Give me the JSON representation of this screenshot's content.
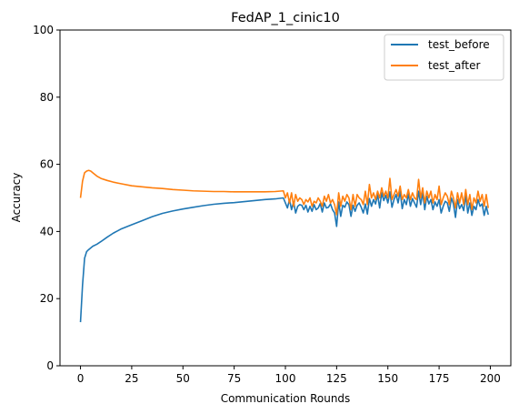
{
  "chart_data": {
    "type": "line",
    "title": "FedAP_1_cinic10",
    "xlabel": "Communication Rounds",
    "ylabel": "Accuracy",
    "xlim": [
      -10,
      210
    ],
    "ylim": [
      0,
      100
    ],
    "xticks": [
      0,
      25,
      50,
      75,
      100,
      125,
      150,
      175,
      200
    ],
    "yticks": [
      0,
      20,
      40,
      60,
      80,
      100
    ],
    "legend_position": "top-right",
    "grid": false,
    "series": [
      {
        "name": "test_before",
        "color": "#1f77b4",
        "points": [
          [
            0,
            13
          ],
          [
            1,
            24
          ],
          [
            2,
            32
          ],
          [
            3,
            34
          ],
          [
            4,
            34.6
          ],
          [
            6,
            35.6
          ],
          [
            8,
            36.2
          ],
          [
            10,
            37
          ],
          [
            13,
            38.3
          ],
          [
            16,
            39.5
          ],
          [
            20,
            40.8
          ],
          [
            25,
            42
          ],
          [
            30,
            43.2
          ],
          [
            35,
            44.4
          ],
          [
            40,
            45.4
          ],
          [
            45,
            46.1
          ],
          [
            50,
            46.7
          ],
          [
            55,
            47.2
          ],
          [
            60,
            47.7
          ],
          [
            65,
            48.1
          ],
          [
            70,
            48.4
          ],
          [
            75,
            48.6
          ],
          [
            80,
            48.9
          ],
          [
            85,
            49.2
          ],
          [
            90,
            49.5
          ],
          [
            95,
            49.7
          ],
          [
            99,
            50
          ],
          [
            100,
            48.5
          ],
          [
            101,
            47
          ],
          [
            102,
            49.5
          ],
          [
            103,
            46.5
          ],
          [
            104,
            48.8
          ],
          [
            105,
            45.5
          ],
          [
            106,
            47.5
          ],
          [
            107,
            48
          ],
          [
            108,
            47.8
          ],
          [
            109,
            46.5
          ],
          [
            110,
            47.8
          ],
          [
            111,
            45.8
          ],
          [
            112,
            47.5
          ],
          [
            113,
            46
          ],
          [
            114,
            48
          ],
          [
            115,
            46.5
          ],
          [
            116,
            47
          ],
          [
            117,
            48.3
          ],
          [
            118,
            45.8
          ],
          [
            119,
            48.5
          ],
          [
            120,
            47
          ],
          [
            121,
            47.2
          ],
          [
            122,
            48.2
          ],
          [
            123,
            46.5
          ],
          [
            124,
            45.5
          ],
          [
            125,
            41.5
          ],
          [
            126,
            48.8
          ],
          [
            127,
            44.5
          ],
          [
            128,
            47.8
          ],
          [
            129,
            47.2
          ],
          [
            130,
            48.8
          ],
          [
            131,
            48
          ],
          [
            132,
            44.5
          ],
          [
            133,
            47.8
          ],
          [
            134,
            46
          ],
          [
            135,
            47.8
          ],
          [
            136,
            48.5
          ],
          [
            137,
            47.2
          ],
          [
            138,
            45.5
          ],
          [
            139,
            48.2
          ],
          [
            140,
            45.2
          ],
          [
            141,
            49.8
          ],
          [
            142,
            47.5
          ],
          [
            143,
            49.5
          ],
          [
            144,
            48.2
          ],
          [
            145,
            51
          ],
          [
            146,
            47
          ],
          [
            147,
            51.5
          ],
          [
            148,
            49.2
          ],
          [
            149,
            50.8
          ],
          [
            150,
            48.5
          ],
          [
            151,
            51.8
          ],
          [
            152,
            47.2
          ],
          [
            153,
            49.5
          ],
          [
            154,
            51
          ],
          [
            155,
            48.5
          ],
          [
            156,
            52
          ],
          [
            157,
            46.8
          ],
          [
            158,
            49.5
          ],
          [
            159,
            48
          ],
          [
            160,
            51.2
          ],
          [
            161,
            47.5
          ],
          [
            162,
            49.8
          ],
          [
            163,
            48.5
          ],
          [
            164,
            47.2
          ],
          [
            165,
            52
          ],
          [
            166,
            48
          ],
          [
            167,
            51.5
          ],
          [
            168,
            46.5
          ],
          [
            169,
            50.5
          ],
          [
            170,
            48.2
          ],
          [
            171,
            49.5
          ],
          [
            172,
            46.5
          ],
          [
            173,
            48.8
          ],
          [
            174,
            47.5
          ],
          [
            175,
            49.5
          ],
          [
            176,
            45.5
          ],
          [
            177,
            47.5
          ],
          [
            178,
            49
          ],
          [
            179,
            48.5
          ],
          [
            180,
            46
          ],
          [
            181,
            50
          ],
          [
            182,
            48.2
          ],
          [
            183,
            44.2
          ],
          [
            184,
            49.5
          ],
          [
            185,
            46.8
          ],
          [
            186,
            48
          ],
          [
            187,
            46.2
          ],
          [
            188,
            50.8
          ],
          [
            189,
            45.5
          ],
          [
            190,
            48.5
          ],
          [
            191,
            44.8
          ],
          [
            192,
            47.5
          ],
          [
            193,
            46.5
          ],
          [
            194,
            49.5
          ],
          [
            195,
            47.5
          ],
          [
            196,
            48.2
          ],
          [
            197,
            44.8
          ],
          [
            198,
            47.5
          ],
          [
            199,
            45
          ]
        ]
      },
      {
        "name": "test_after",
        "color": "#ff7f0e",
        "points": [
          [
            0,
            50
          ],
          [
            1,
            55
          ],
          [
            2,
            57.5
          ],
          [
            3,
            58
          ],
          [
            4,
            58.2
          ],
          [
            5,
            58
          ],
          [
            6,
            57.5
          ],
          [
            8,
            56.5
          ],
          [
            10,
            55.8
          ],
          [
            13,
            55.2
          ],
          [
            16,
            54.7
          ],
          [
            20,
            54.2
          ],
          [
            25,
            53.6
          ],
          [
            30,
            53.3
          ],
          [
            35,
            53
          ],
          [
            40,
            52.8
          ],
          [
            45,
            52.5
          ],
          [
            50,
            52.3
          ],
          [
            55,
            52.1
          ],
          [
            60,
            52
          ],
          [
            65,
            51.9
          ],
          [
            70,
            51.9
          ],
          [
            75,
            51.8
          ],
          [
            80,
            51.8
          ],
          [
            85,
            51.8
          ],
          [
            90,
            51.8
          ],
          [
            95,
            51.9
          ],
          [
            99,
            52.1
          ],
          [
            100,
            50
          ],
          [
            101,
            51.5
          ],
          [
            102,
            48.5
          ],
          [
            103,
            51.5
          ],
          [
            104,
            47.5
          ],
          [
            105,
            51
          ],
          [
            106,
            49
          ],
          [
            107,
            50
          ],
          [
            108,
            49.5
          ],
          [
            109,
            48
          ],
          [
            110,
            49.5
          ],
          [
            111,
            48.8
          ],
          [
            112,
            50
          ],
          [
            113,
            47.5
          ],
          [
            114,
            49
          ],
          [
            115,
            48.5
          ],
          [
            116,
            50
          ],
          [
            117,
            49
          ],
          [
            118,
            47.5
          ],
          [
            119,
            50.5
          ],
          [
            120,
            49
          ],
          [
            121,
            51
          ],
          [
            122,
            48.5
          ],
          [
            123,
            49.5
          ],
          [
            124,
            48
          ],
          [
            125,
            45
          ],
          [
            126,
            51.5
          ],
          [
            127,
            47.5
          ],
          [
            128,
            50.5
          ],
          [
            129,
            49
          ],
          [
            130,
            51
          ],
          [
            131,
            50
          ],
          [
            132,
            46.5
          ],
          [
            133,
            51
          ],
          [
            134,
            47.5
          ],
          [
            135,
            51
          ],
          [
            136,
            50
          ],
          [
            137,
            49.5
          ],
          [
            138,
            48
          ],
          [
            139,
            52
          ],
          [
            140,
            48
          ],
          [
            141,
            54
          ],
          [
            142,
            50
          ],
          [
            143,
            51.5
          ],
          [
            144,
            49.5
          ],
          [
            145,
            52
          ],
          [
            146,
            50
          ],
          [
            147,
            53
          ],
          [
            148,
            50.5
          ],
          [
            149,
            52
          ],
          [
            150,
            50
          ],
          [
            151,
            55.8
          ],
          [
            152,
            49.5
          ],
          [
            153,
            51
          ],
          [
            154,
            52.5
          ],
          [
            155,
            50.5
          ],
          [
            156,
            53.5
          ],
          [
            157,
            49.5
          ],
          [
            158,
            51
          ],
          [
            159,
            50
          ],
          [
            160,
            52.5
          ],
          [
            161,
            49.5
          ],
          [
            162,
            51.5
          ],
          [
            163,
            50
          ],
          [
            164,
            49.5
          ],
          [
            165,
            55.5
          ],
          [
            166,
            50
          ],
          [
            167,
            53
          ],
          [
            168,
            48.5
          ],
          [
            169,
            52
          ],
          [
            170,
            50
          ],
          [
            171,
            52
          ],
          [
            172,
            48.5
          ],
          [
            173,
            51
          ],
          [
            174,
            49.5
          ],
          [
            175,
            53.5
          ],
          [
            176,
            48
          ],
          [
            177,
            50
          ],
          [
            178,
            51.5
          ],
          [
            179,
            50.5
          ],
          [
            180,
            48
          ],
          [
            181,
            52
          ],
          [
            182,
            50
          ],
          [
            183,
            47
          ],
          [
            184,
            51.5
          ],
          [
            185,
            48.5
          ],
          [
            186,
            51.5
          ],
          [
            187,
            48
          ],
          [
            188,
            52.5
          ],
          [
            189,
            48
          ],
          [
            190,
            51
          ],
          [
            191,
            46.5
          ],
          [
            192,
            50
          ],
          [
            193,
            48.5
          ],
          [
            194,
            52
          ],
          [
            195,
            49
          ],
          [
            196,
            51
          ],
          [
            197,
            47.5
          ],
          [
            198,
            51
          ],
          [
            199,
            47
          ]
        ]
      }
    ]
  }
}
